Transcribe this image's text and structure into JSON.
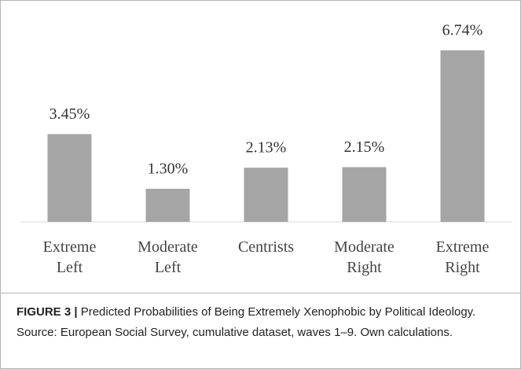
{
  "chart_data": {
    "type": "bar",
    "categories": [
      "Extreme Left",
      "Moderate Left",
      "Centrists",
      "Moderate Right",
      "Extreme Right"
    ],
    "values": [
      3.45,
      1.3,
      2.13,
      2.15,
      6.74
    ],
    "value_labels": [
      "3.45%",
      "1.30%",
      "2.13%",
      "2.15%",
      "6.74%"
    ],
    "color": "#a5a5a5"
  },
  "caption": {
    "label": "FIGURE 3 |",
    "text": "Predicted Probabilities of Being Extremely Xenophobic by Political Ideology. Source: European Social Survey, cumulative dataset, waves 1–9. Own calculations."
  }
}
